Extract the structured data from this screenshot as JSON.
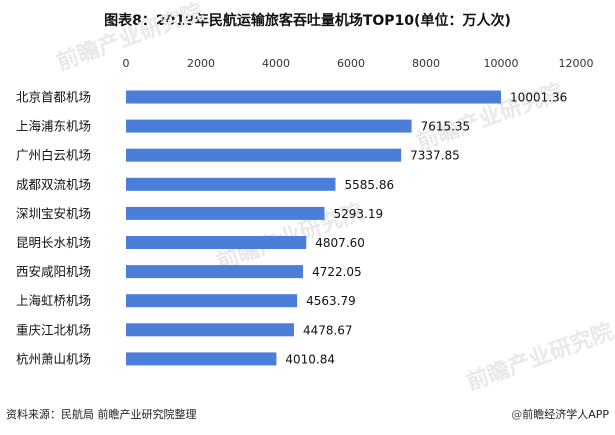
{
  "chart_data": {
    "type": "bar",
    "orientation": "horizontal",
    "title": "图表8：2019年民航运输旅客吞吐量机场TOP10(单位：万人次)",
    "categories": [
      "北京首都机场",
      "上海浦东机场",
      "广州白云机场",
      "成都双流机场",
      "深圳宝安机场",
      "昆明长水机场",
      "西安咸阳机场",
      "上海虹桥机场",
      "重庆江北机场",
      "杭州萧山机场"
    ],
    "values": [
      10001.36,
      7615.35,
      7337.85,
      5585.86,
      5293.19,
      4807.6,
      4722.05,
      4563.79,
      4478.67,
      4010.84
    ],
    "value_labels": [
      "10001.36",
      "7615.35",
      "7337.85",
      "5585.86",
      "5293.19",
      "4807.60",
      "4722.05",
      "4563.79",
      "4478.67",
      "4010.84"
    ],
    "xlim": [
      0,
      12000
    ],
    "xticks": [
      0,
      2000,
      4000,
      6000,
      8000,
      10000,
      12000
    ],
    "xtick_labels": [
      "0",
      "2000",
      "4000",
      "6000",
      "8000",
      "10000",
      "12000"
    ],
    "xaxis_position": "top",
    "grid": false,
    "legend": "none",
    "bar_color": "#4a7ed8"
  },
  "footer": {
    "source": "资料来源：民航局 前瞻产业研究院整理",
    "brand_symbol": "@",
    "brand": "前瞻经济学人APP"
  },
  "watermark": {
    "text": "前瞻产业研究院"
  }
}
